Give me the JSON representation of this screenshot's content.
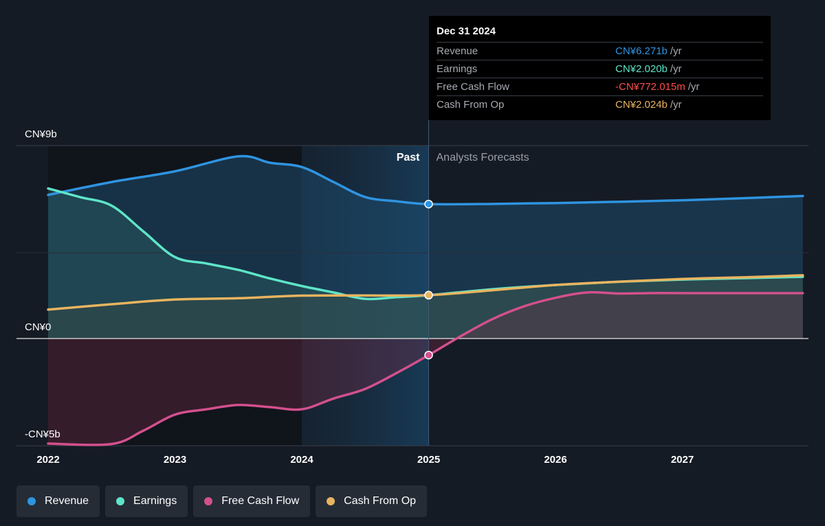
{
  "chart_data": {
    "type": "line",
    "x_ticks": [
      "2022",
      "2023",
      "2024",
      "2025",
      "2026",
      "2027"
    ],
    "y_ticks": [
      "CN¥9b",
      "CN¥0",
      "-CN¥5b"
    ],
    "ylim": [
      -5,
      9
    ],
    "region_labels": {
      "past": "Past",
      "forecast": "Analysts Forecasts"
    },
    "series": [
      {
        "name": "Revenue",
        "color": "#2f94e0",
        "points": [
          [
            2022.0,
            6.7
          ],
          [
            2022.5,
            7.3
          ],
          [
            2023.0,
            7.8
          ],
          [
            2023.5,
            8.5
          ],
          [
            2023.75,
            8.2
          ],
          [
            2024.0,
            8.0
          ],
          [
            2024.25,
            7.3
          ],
          [
            2024.5,
            6.6
          ],
          [
            2024.75,
            6.4
          ],
          [
            2025.0,
            6.271
          ],
          [
            2025.5,
            6.28
          ],
          [
            2026.0,
            6.32
          ],
          [
            2026.5,
            6.38
          ],
          [
            2027.0,
            6.45
          ],
          [
            2027.5,
            6.55
          ],
          [
            2027.95,
            6.65
          ]
        ]
      },
      {
        "name": "Earnings",
        "color": "#5ee5c8",
        "points": [
          [
            2022.0,
            7.0
          ],
          [
            2022.25,
            6.6
          ],
          [
            2022.5,
            6.2
          ],
          [
            2022.75,
            5.0
          ],
          [
            2023.0,
            3.8
          ],
          [
            2023.25,
            3.5
          ],
          [
            2023.5,
            3.2
          ],
          [
            2023.75,
            2.8
          ],
          [
            2024.0,
            2.45
          ],
          [
            2024.25,
            2.15
          ],
          [
            2024.5,
            1.85
          ],
          [
            2024.75,
            1.93
          ],
          [
            2025.0,
            2.02
          ],
          [
            2025.5,
            2.3
          ],
          [
            2026.0,
            2.5
          ],
          [
            2026.5,
            2.65
          ],
          [
            2027.0,
            2.75
          ],
          [
            2027.5,
            2.82
          ],
          [
            2027.95,
            2.88
          ]
        ]
      },
      {
        "name": "Free Cash Flow",
        "color": "#d3508d",
        "points": [
          [
            2022.0,
            -4.9
          ],
          [
            2022.5,
            -4.92
          ],
          [
            2022.75,
            -4.3
          ],
          [
            2023.0,
            -3.55
          ],
          [
            2023.25,
            -3.3
          ],
          [
            2023.5,
            -3.1
          ],
          [
            2023.75,
            -3.2
          ],
          [
            2024.0,
            -3.3
          ],
          [
            2024.25,
            -2.8
          ],
          [
            2024.5,
            -2.35
          ],
          [
            2024.75,
            -1.6
          ],
          [
            2025.0,
            -0.772
          ],
          [
            2025.25,
            0.1
          ],
          [
            2025.5,
            0.9
          ],
          [
            2025.75,
            1.5
          ],
          [
            2026.0,
            1.9
          ],
          [
            2026.25,
            2.15
          ],
          [
            2026.5,
            2.1
          ],
          [
            2026.75,
            2.12
          ],
          [
            2027.0,
            2.12
          ],
          [
            2027.5,
            2.12
          ],
          [
            2027.95,
            2.12
          ]
        ]
      },
      {
        "name": "Cash From Op",
        "color": "#e9b45f",
        "points": [
          [
            2022.0,
            1.35
          ],
          [
            2022.5,
            1.6
          ],
          [
            2023.0,
            1.82
          ],
          [
            2023.5,
            1.88
          ],
          [
            2024.0,
            2.0
          ],
          [
            2024.5,
            2.01
          ],
          [
            2025.0,
            2.024
          ],
          [
            2025.5,
            2.25
          ],
          [
            2026.0,
            2.5
          ],
          [
            2026.5,
            2.65
          ],
          [
            2027.0,
            2.78
          ],
          [
            2027.5,
            2.86
          ],
          [
            2027.95,
            2.95
          ]
        ]
      }
    ]
  },
  "tooltip": {
    "date": "Dec 31 2024",
    "rows": [
      {
        "label": "Revenue",
        "value": "CN¥6.271b",
        "unit": "/yr",
        "color": "#2f94e0"
      },
      {
        "label": "Earnings",
        "value": "CN¥2.020b",
        "unit": "/yr",
        "color": "#5ee5c8"
      },
      {
        "label": "Free Cash Flow",
        "value": "-CN¥772.015m",
        "unit": "/yr",
        "color": "#ff4d4d"
      },
      {
        "label": "Cash From Op",
        "value": "CN¥2.024b",
        "unit": "/yr",
        "color": "#e9b45f"
      }
    ]
  },
  "legend": [
    {
      "label": "Revenue",
      "color": "#2f94e0"
    },
    {
      "label": "Earnings",
      "color": "#5ee5c8"
    },
    {
      "label": "Free Cash Flow",
      "color": "#d3508d"
    },
    {
      "label": "Cash From Op",
      "color": "#e9b45f"
    }
  ]
}
